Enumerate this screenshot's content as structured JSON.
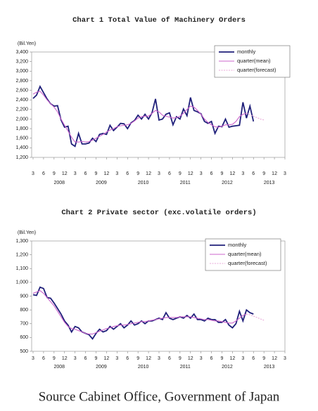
{
  "chart_data": [
    {
      "type": "line",
      "title": "Chart 1 Total Value of Machinery Orders",
      "y_unit": "(Bil.Yen)",
      "categories": [
        "3",
        null,
        null,
        "6",
        null,
        null,
        "9",
        null,
        null,
        "12",
        null,
        null,
        "3",
        null,
        null,
        "6",
        null,
        null,
        "9",
        null,
        null,
        "12",
        null,
        null,
        "3",
        null,
        null,
        "6",
        null,
        null,
        "9",
        null,
        null,
        "12",
        null,
        null,
        "3",
        null,
        null,
        "6",
        null,
        null,
        "9",
        null,
        null,
        "12",
        null,
        null,
        "3",
        null,
        null,
        "6",
        null,
        null,
        "9",
        null,
        null,
        "12",
        null,
        null,
        "3",
        null,
        null,
        "6",
        null,
        null,
        "9",
        null,
        null,
        "12",
        null,
        null,
        "3"
      ],
      "year_labels": [
        "2008",
        "2009",
        "2010",
        "2011",
        "2012",
        "2013"
      ],
      "ylim": [
        1200,
        3400
      ],
      "yticks": [
        {
          "value": 1200,
          "label": "1,200"
        },
        {
          "value": 1400,
          "label": "1,400"
        },
        {
          "value": 1600,
          "label": "1,600"
        },
        {
          "value": 1800,
          "label": "1,800"
        },
        {
          "value": 2000,
          "label": "2,000"
        },
        {
          "value": 2200,
          "label": "2,200"
        },
        {
          "value": 2400,
          "label": "2,400"
        },
        {
          "value": 2600,
          "label": "2,600"
        },
        {
          "value": 2800,
          "label": "2,800"
        },
        {
          "value": 3000,
          "label": "3,000"
        },
        {
          "value": 3200,
          "label": "3,200"
        },
        {
          "value": 3400,
          "label": "3,400"
        }
      ],
      "legend": "upper right",
      "grid": false,
      "series": [
        {
          "name": "monthly",
          "color": "#1f1f7a",
          "values": [
            2430,
            2500,
            2680,
            2550,
            2420,
            2320,
            2270,
            2280,
            1980,
            1830,
            1850,
            1480,
            1430,
            1700,
            1480,
            1480,
            1500,
            1600,
            1530,
            1680,
            1700,
            1680,
            1870,
            1760,
            1830,
            1910,
            1900,
            1800,
            1920,
            1970,
            2080,
            2000,
            2100,
            2000,
            2130,
            2420,
            1980,
            2000,
            2100,
            2130,
            1880,
            2050,
            2000,
            2210,
            2070,
            2450,
            2180,
            2150,
            2110,
            1950,
            1910,
            1950,
            1700,
            1850,
            1840,
            2000,
            1830,
            1850,
            1860,
            1870,
            2350,
            2020,
            2270,
            1950,
            null,
            null,
            null,
            null,
            null,
            null,
            null,
            null,
            null
          ]
        },
        {
          "name": "quarter(mean)",
          "color": "#cc66cc",
          "values": [
            2520,
            2560,
            2580,
            2500,
            2400,
            2320,
            2250,
            2150,
            2000,
            1870,
            1750,
            1620,
            1520,
            1520,
            1530,
            1520,
            1530,
            1560,
            1600,
            1640,
            1680,
            1730,
            1770,
            1800,
            1840,
            1860,
            1870,
            1880,
            1910,
            1960,
            2020,
            2050,
            2060,
            2060,
            2120,
            2180,
            2150,
            2080,
            2060,
            2040,
            2020,
            2030,
            2060,
            2120,
            2200,
            2270,
            2250,
            2180,
            2100,
            2000,
            1930,
            1880,
            1840,
            1830,
            1850,
            1880,
            1880,
            1890,
            1950,
            2050,
            2100,
            2120,
            null,
            null,
            null,
            null,
            null,
            null,
            null,
            null,
            null,
            null,
            null
          ]
        },
        {
          "name": "quarter(forecast)",
          "color": "#e8a8d8",
          "dashed": true,
          "values": [
            null,
            null,
            null,
            null,
            null,
            null,
            null,
            null,
            null,
            null,
            null,
            null,
            null,
            null,
            null,
            null,
            null,
            null,
            null,
            null,
            null,
            null,
            null,
            null,
            null,
            null,
            null,
            null,
            null,
            null,
            null,
            null,
            null,
            null,
            null,
            null,
            null,
            null,
            null,
            null,
            null,
            null,
            null,
            null,
            null,
            null,
            null,
            null,
            null,
            null,
            null,
            null,
            null,
            null,
            null,
            null,
            null,
            null,
            null,
            null,
            null,
            2120,
            2090,
            2060,
            2030,
            2000,
            1980,
            null,
            null,
            null,
            null,
            null,
            null
          ]
        }
      ]
    },
    {
      "type": "line",
      "title": "Chart 2 Private sector (exc.volatile orders)",
      "y_unit": "(Bil.Yen)",
      "categories": [
        "3",
        null,
        null,
        "6",
        null,
        null,
        "9",
        null,
        null,
        "12",
        null,
        null,
        "3",
        null,
        null,
        "6",
        null,
        null,
        "9",
        null,
        null,
        "12",
        null,
        null,
        "3",
        null,
        null,
        "6",
        null,
        null,
        "9",
        null,
        null,
        "12",
        null,
        null,
        "3",
        null,
        null,
        "6",
        null,
        null,
        "9",
        null,
        null,
        "12",
        null,
        null,
        "3",
        null,
        null,
        "6",
        null,
        null,
        "9",
        null,
        null,
        "12",
        null,
        null,
        "3",
        null,
        null,
        "6",
        null,
        null,
        "9",
        null,
        null,
        "12",
        null,
        null,
        "3"
      ],
      "year_labels": [
        "2008",
        "2009",
        "2010",
        "2011",
        "2012",
        "2013"
      ],
      "ylim": [
        500,
        1300
      ],
      "yticks": [
        500,
        600,
        700,
        800,
        900,
        {
          "value": 1000,
          "label": "1,000"
        },
        {
          "value": 1100,
          "label": "1,100"
        },
        {
          "value": 1200,
          "label": "1,200"
        },
        {
          "value": 1300,
          "label": "1,300"
        }
      ],
      "legend": "upper right",
      "grid": false,
      "series": [
        {
          "name": "monthly",
          "color": "#1f1f7a",
          "values": [
            910,
            905,
            965,
            955,
            890,
            885,
            850,
            810,
            770,
            720,
            690,
            640,
            680,
            670,
            640,
            630,
            620,
            590,
            630,
            660,
            640,
            650,
            680,
            660,
            680,
            700,
            670,
            690,
            720,
            690,
            700,
            720,
            700,
            720,
            720,
            730,
            740,
            730,
            780,
            740,
            730,
            740,
            750,
            740,
            760,
            740,
            770,
            730,
            730,
            720,
            740,
            730,
            730,
            710,
            710,
            730,
            690,
            670,
            700,
            790,
            720,
            800,
            780,
            770,
            null,
            null,
            null,
            null,
            null,
            null,
            null,
            null,
            null
          ]
        },
        {
          "name": "quarter(mean)",
          "color": "#cc66cc",
          "values": [
            920,
            930,
            940,
            920,
            890,
            860,
            830,
            790,
            750,
            710,
            680,
            665,
            660,
            650,
            640,
            630,
            625,
            625,
            635,
            645,
            655,
            665,
            670,
            680,
            685,
            690,
            690,
            695,
            700,
            705,
            710,
            715,
            715,
            720,
            725,
            730,
            735,
            740,
            745,
            745,
            745,
            745,
            750,
            750,
            750,
            750,
            745,
            740,
            735,
            730,
            730,
            725,
            720,
            720,
            715,
            710,
            705,
            705,
            720,
            740,
            760,
            770,
            null,
            null,
            null,
            null,
            null,
            null,
            null,
            null,
            null,
            null,
            null
          ]
        },
        {
          "name": "quarter(forecast)",
          "color": "#e8a8d8",
          "dashed": true,
          "values": [
            null,
            null,
            null,
            null,
            null,
            null,
            null,
            null,
            null,
            null,
            null,
            null,
            null,
            null,
            null,
            null,
            null,
            null,
            null,
            null,
            null,
            null,
            null,
            null,
            null,
            null,
            null,
            null,
            null,
            null,
            null,
            null,
            null,
            null,
            null,
            null,
            null,
            null,
            null,
            null,
            null,
            null,
            null,
            null,
            null,
            null,
            null,
            null,
            null,
            null,
            null,
            null,
            null,
            null,
            null,
            null,
            null,
            null,
            null,
            null,
            null,
            770,
            765,
            755,
            745,
            735,
            725,
            null,
            null,
            null,
            null,
            null,
            null
          ]
        }
      ]
    }
  ],
  "source": "Source Cabinet Office, Government of Japan"
}
